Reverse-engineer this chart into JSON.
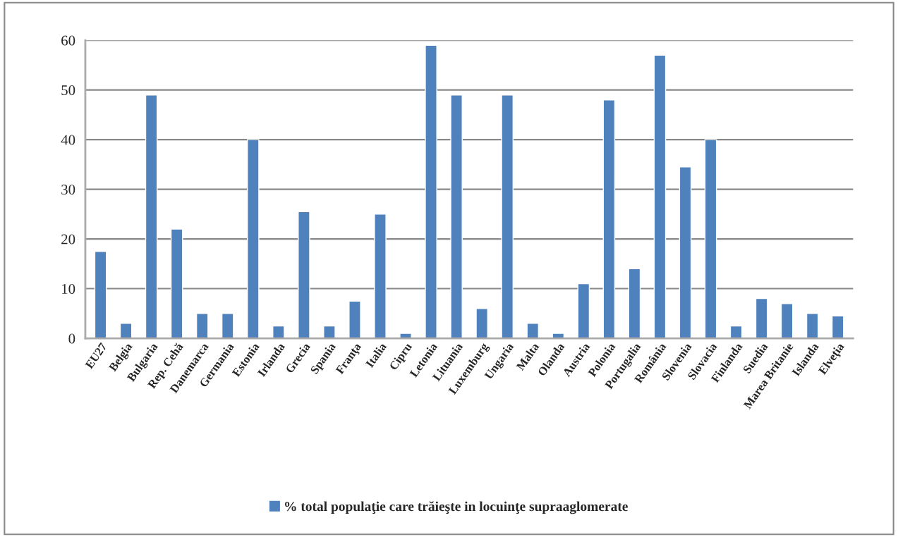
{
  "chart_data": {
    "type": "bar",
    "categories": [
      "EU27",
      "Belgia",
      "Bulgaria",
      "Rep. Cehă",
      "Danemarca",
      "Germania",
      "Estonia",
      "Irlanda",
      "Grecia",
      "Spania",
      "Franţa",
      "Italia",
      "Cipru",
      "Letonia",
      "Lituania",
      "Luxemburg",
      "Ungaria",
      "Malta",
      "Olanda",
      "Austria",
      "Polonia",
      "Portugalia",
      "România",
      "Slovenia",
      "Slovacia",
      "Finlanda",
      "Suedia",
      "Marea Britanie",
      "Islanda",
      "Elveţia"
    ],
    "series": [
      {
        "name": "% total populaţie care trăieşte in locuinţe supraaglomerate",
        "color": "#4f81bd",
        "values": [
          17.5,
          3,
          49,
          22,
          5,
          5,
          40,
          2.5,
          25.5,
          2.5,
          7.5,
          25,
          1,
          59,
          49,
          6,
          49,
          3,
          1,
          11,
          48,
          14,
          57,
          34.5,
          40,
          2.5,
          8,
          7,
          5,
          4.5
        ]
      }
    ],
    "ylim": [
      0,
      60
    ],
    "yticks": [
      0,
      10,
      20,
      30,
      40,
      50,
      60
    ],
    "grid": "y",
    "legend": "bottom"
  }
}
